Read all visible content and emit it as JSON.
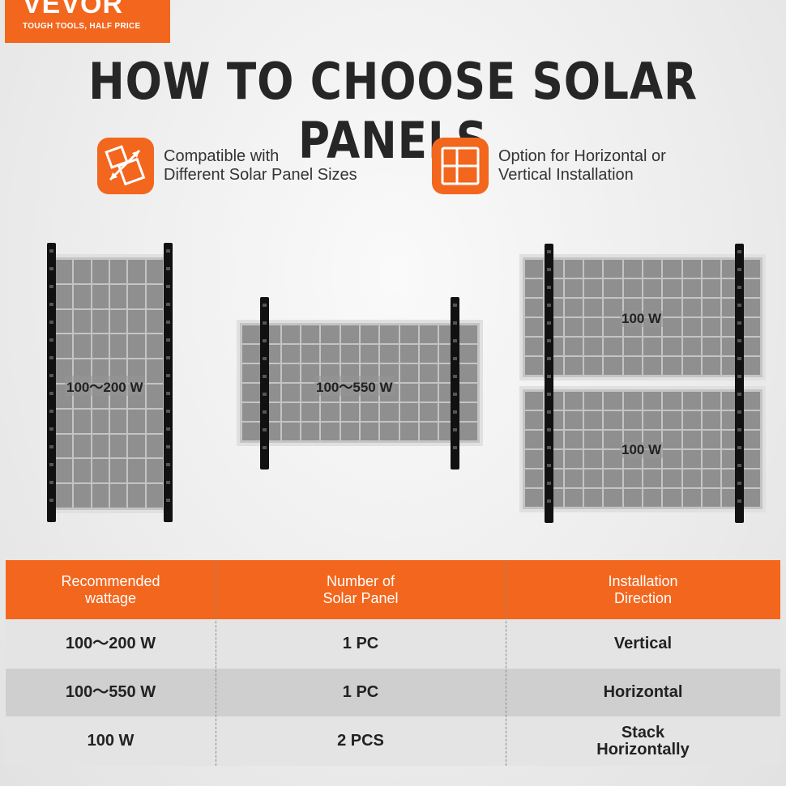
{
  "logo": {
    "brand": "VEVOR",
    "tagline": "TOUGH TOOLS, HALF PRICE"
  },
  "title": "HOW TO CHOOSE SOLAR PANELS",
  "features": [
    {
      "icon": "resize-panels-icon",
      "line1": "Compatible with",
      "line2": "Different Solar Panel Sizes"
    },
    {
      "icon": "layout-grid-icon",
      "line1": "Option for Horizontal or",
      "line2": "Vertical Installation"
    }
  ],
  "panels": {
    "vertical_label": "100～200 W",
    "horizontal_label": "100～550 W",
    "stack_top_label": "100 W",
    "stack_bottom_label": "100 W"
  },
  "table": {
    "headers": [
      {
        "line1": "Recommended",
        "line2": "wattage"
      },
      {
        "line1": "Number of",
        "line2": "Solar Panel"
      },
      {
        "line1": "Installation",
        "line2": "Direction"
      }
    ],
    "rows": [
      {
        "wattage": "100～200 W",
        "count": "1 PC",
        "direction1": "Vertical",
        "direction2": ""
      },
      {
        "wattage": "100～550 W",
        "count": "1 PC",
        "direction1": "Horizontal",
        "direction2": ""
      },
      {
        "wattage": "100 W",
        "count": "2 PCS",
        "direction1": "Stack",
        "direction2": "Horizontally"
      }
    ]
  },
  "colors": {
    "accent": "#f3661d",
    "row_light": "#e4e4e4",
    "row_dark": "#cfcfcf"
  }
}
